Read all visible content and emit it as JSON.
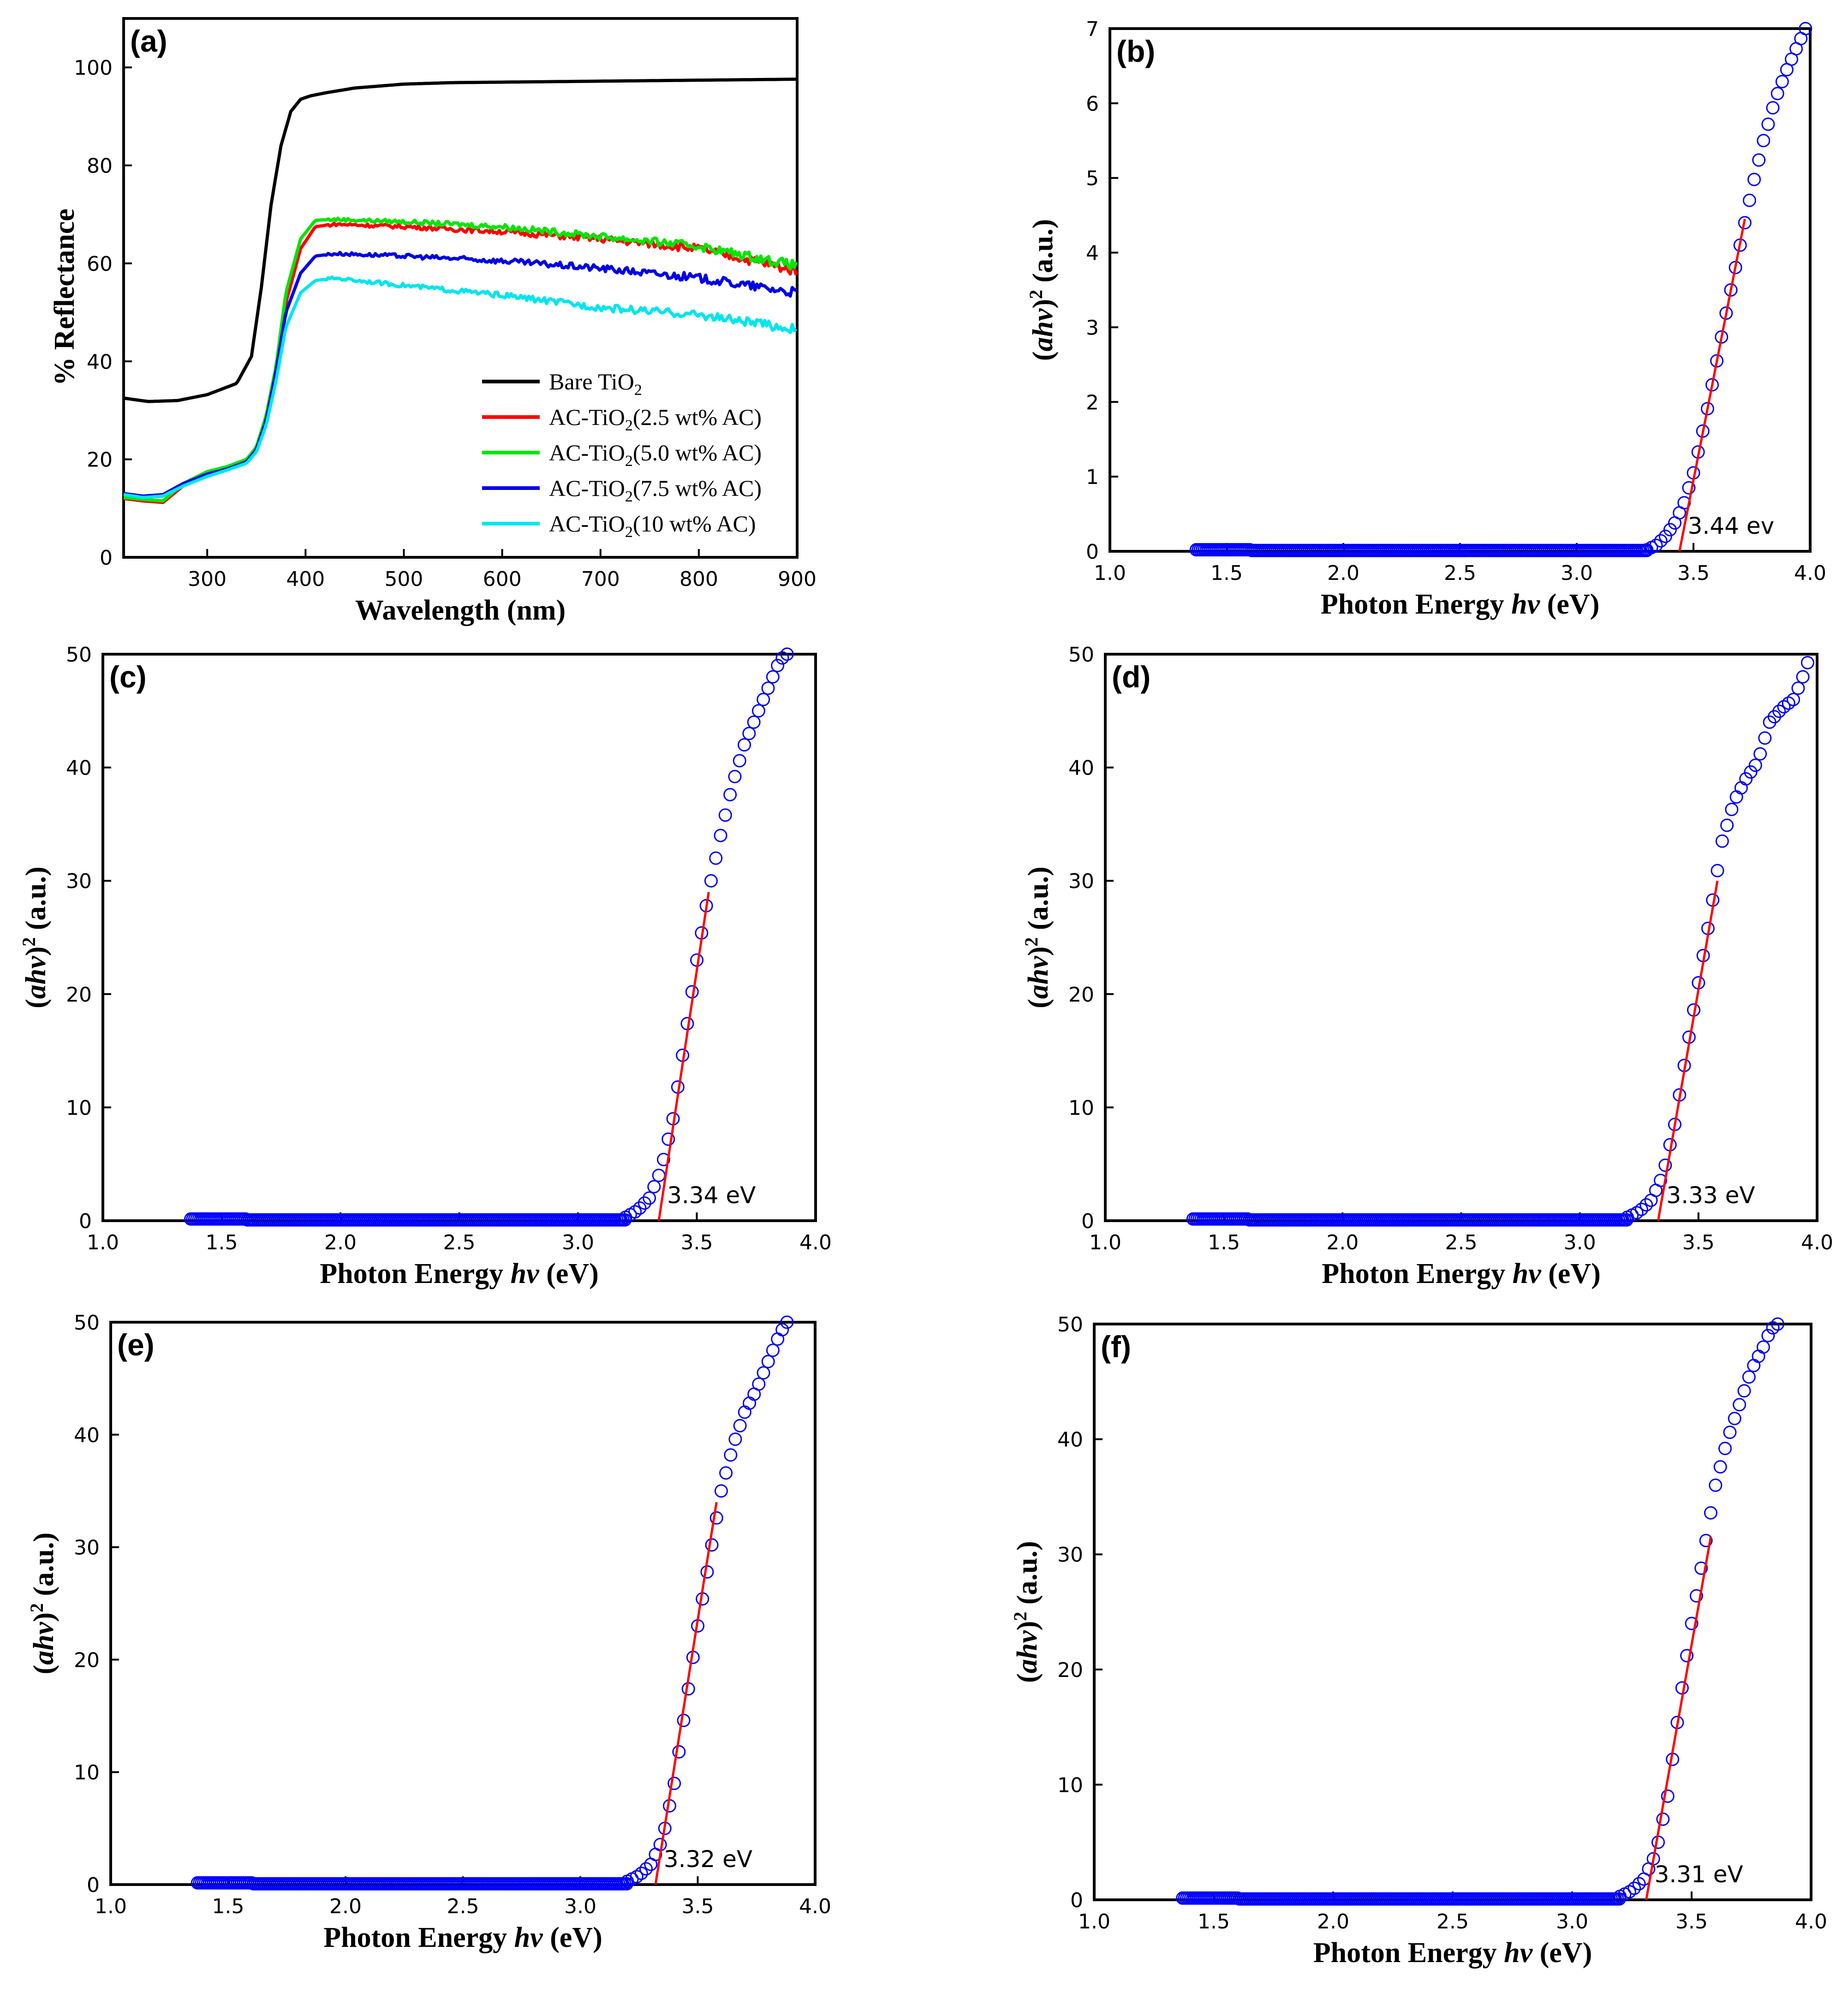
{
  "chart_data": [
    {
      "panel": "(a)",
      "type": "line",
      "xlabel": "Wavelength (nm)",
      "ylabel": "% Reflectance",
      "xlim": [
        215,
        900
      ],
      "ylim": [
        0,
        110
      ],
      "xticks": [
        300,
        400,
        500,
        600,
        700,
        800,
        900
      ],
      "yticks": [
        0,
        20,
        40,
        60,
        80,
        100
      ],
      "legend_position": "bottom-right",
      "series": [
        {
          "name": "Bare TiO2",
          "label_main": "Bare TiO",
          "label_sub": "2",
          "label_tail": "",
          "color": "#000000",
          "x": [
            215,
            240,
            270,
            300,
            330,
            345,
            355,
            365,
            375,
            385,
            395,
            405,
            420,
            450,
            500,
            550,
            600,
            700,
            800,
            900
          ],
          "y": [
            32.5,
            31.8,
            32.0,
            33.2,
            35.5,
            41,
            55,
            72,
            84,
            91,
            93.5,
            94.2,
            94.8,
            95.8,
            96.6,
            96.9,
            97.0,
            97.2,
            97.4,
            97.6
          ]
        },
        {
          "name": "AC-TiO2(2.5 wt% AC)",
          "label_main": "AC-TiO",
          "label_sub": "2",
          "label_tail": "(2.5 wt% AC)",
          "color": "#ff0000",
          "x": [
            215,
            235,
            255,
            275,
            300,
            320,
            340,
            350,
            360,
            370,
            380,
            395,
            410,
            430,
            500,
            600,
            700,
            800,
            900
          ],
          "y": [
            12,
            11.5,
            11.2,
            14.5,
            17,
            18.2,
            19.5,
            22,
            28,
            38,
            52,
            63,
            67.5,
            68,
            67.5,
            66.5,
            65,
            63,
            58.5
          ]
        },
        {
          "name": "AC-TiO2(5.0 wt% AC)",
          "label_main": "AC-TiO",
          "label_sub": "2",
          "label_tail": "(5.0 wt% AC)",
          "color": "#00e600",
          "x": [
            215,
            235,
            255,
            275,
            300,
            320,
            340,
            350,
            360,
            370,
            380,
            395,
            410,
            430,
            500,
            600,
            700,
            800,
            900
          ],
          "y": [
            12.2,
            11.8,
            11.5,
            15,
            17.5,
            18.5,
            20,
            22.5,
            29,
            39,
            54,
            65,
            68.8,
            69,
            68.5,
            67.5,
            65.5,
            63.5,
            59.5
          ]
        },
        {
          "name": "AC-TiO2(7.5 wt% AC)",
          "label_main": "AC-TiO",
          "label_sub": "2",
          "label_tail": "(7.5 wt% AC)",
          "color": "#0000e6",
          "x": [
            215,
            235,
            255,
            275,
            300,
            320,
            340,
            350,
            360,
            370,
            380,
            395,
            410,
            430,
            500,
            600,
            700,
            800,
            900
          ],
          "y": [
            13,
            12.5,
            12.8,
            15,
            17,
            18,
            19.5,
            22,
            28,
            38,
            50,
            58,
            61.5,
            62,
            61.5,
            60.5,
            59,
            57,
            54
          ]
        },
        {
          "name": "AC-TiO2(10 wt% AC)",
          "label_main": "AC-TiO",
          "label_sub": "2",
          "label_tail": "(10 wt% AC)",
          "color": "#00e5ee",
          "x": [
            215,
            235,
            255,
            275,
            300,
            320,
            340,
            350,
            360,
            370,
            380,
            395,
            410,
            430,
            500,
            600,
            700,
            800,
            900
          ],
          "y": [
            12.8,
            12.2,
            12.5,
            14.5,
            16.5,
            17.8,
            19.2,
            21.5,
            27,
            36,
            47,
            54,
            56.5,
            57,
            55.5,
            53.5,
            51,
            49.5,
            46.5
          ]
        }
      ]
    },
    {
      "panel": "(b)",
      "type": "scatter",
      "xlabel": "Photon Energy hv (eV)",
      "xlabel_main": "Photon Energy ",
      "xlabel_italic": "hv",
      "xlabel_tail": " (eV)",
      "ylabel": "(ahv)2 (a.u.)",
      "xlim": [
        1.0,
        4.0
      ],
      "ylim": [
        0,
        7
      ],
      "xticks": [
        1.0,
        1.5,
        2.0,
        2.5,
        3.0,
        3.5,
        4.0
      ],
      "yticks": [
        0,
        1,
        2,
        3,
        4,
        5,
        6,
        7
      ],
      "band_gap_label": "3.44 ev",
      "band_gap": 3.44,
      "fit_line": {
        "x": [
          3.44,
          3.72
        ],
        "y": [
          0,
          4.45
        ]
      },
      "curve": {
        "x": [
          3.3,
          3.34,
          3.38,
          3.42,
          3.46,
          3.5,
          3.55,
          3.6,
          3.65,
          3.7,
          3.75,
          3.8,
          3.85,
          3.9,
          3.95,
          3.98
        ],
        "y": [
          0.02,
          0.08,
          0.2,
          0.38,
          0.65,
          1.05,
          1.75,
          2.55,
          3.35,
          4.1,
          4.85,
          5.5,
          6.05,
          6.45,
          6.8,
          7.0
        ]
      }
    },
    {
      "panel": "(c)",
      "type": "scatter",
      "xlabel": "Photon Energy hv (eV)",
      "xlabel_main": "Photon Energy ",
      "xlabel_italic": "hv",
      "xlabel_tail": " (eV)",
      "ylabel": "(ahv)2 (a.u.)",
      "xlim": [
        1.0,
        4.0
      ],
      "ylim": [
        0,
        50
      ],
      "xticks": [
        1.0,
        1.5,
        2.0,
        2.5,
        3.0,
        3.5,
        4.0
      ],
      "yticks": [
        0,
        10,
        20,
        30,
        40,
        50
      ],
      "band_gap_label": "3.34 eV",
      "band_gap": 3.34,
      "fit_line": {
        "x": [
          3.34,
          3.55
        ],
        "y": [
          0,
          29
        ]
      },
      "curve": {
        "x": [
          3.2,
          3.25,
          3.3,
          3.35,
          3.4,
          3.45,
          3.5,
          3.55,
          3.6,
          3.65,
          3.7,
          3.75,
          3.8,
          3.85,
          3.88
        ],
        "y": [
          0.3,
          0.9,
          2.0,
          4.5,
          9,
          16,
          23,
          29,
          34,
          38.5,
          42,
          44.5,
          47,
          49.5,
          50
        ]
      }
    },
    {
      "panel": "(d)",
      "type": "scatter",
      "xlabel": "Photon Energy hv (eV)",
      "xlabel_main": "Photon Energy ",
      "xlabel_italic": "hv",
      "xlabel_tail": " (eV)",
      "ylabel": "(ahv)2 (a.u.)",
      "xlim": [
        1.0,
        4.0
      ],
      "ylim": [
        0,
        50
      ],
      "xticks": [
        1.0,
        1.5,
        2.0,
        2.5,
        3.0,
        3.5,
        4.0
      ],
      "yticks": [
        0,
        10,
        20,
        30,
        40,
        50
      ],
      "band_gap_label": "3.33 eV",
      "band_gap": 3.33,
      "fit_line": {
        "x": [
          3.33,
          3.58
        ],
        "y": [
          0,
          30
        ]
      },
      "curve": {
        "x": [
          3.2,
          3.25,
          3.3,
          3.35,
          3.4,
          3.45,
          3.5,
          3.55,
          3.6,
          3.65,
          3.7,
          3.75,
          3.8,
          3.85,
          3.9,
          3.95,
          3.97
        ],
        "y": [
          0.3,
          0.8,
          1.8,
          4,
          8.5,
          15,
          21,
          27,
          33.5,
          37,
          39,
          40.5,
          44,
          45.2,
          46,
          48.5,
          50
        ]
      }
    },
    {
      "panel": "(e)",
      "type": "scatter",
      "xlabel": "Photon Energy hv (eV)",
      "xlabel_main": "Photon Energy ",
      "xlabel_italic": "hv",
      "xlabel_tail": " (eV)",
      "ylabel": "(ahv)2 (a.u.)",
      "xlim": [
        1.0,
        4.0
      ],
      "ylim": [
        0,
        50
      ],
      "xticks": [
        1.0,
        1.5,
        2.0,
        2.5,
        3.0,
        3.5,
        4.0
      ],
      "yticks": [
        0,
        10,
        20,
        30,
        40,
        50
      ],
      "band_gap_label": "3.32 eV",
      "band_gap": 3.32,
      "fit_line": {
        "x": [
          3.32,
          3.58
        ],
        "y": [
          0,
          34
        ]
      },
      "curve": {
        "x": [
          3.2,
          3.25,
          3.3,
          3.35,
          3.4,
          3.45,
          3.5,
          3.55,
          3.6,
          3.65,
          3.7,
          3.75,
          3.8,
          3.85,
          3.88
        ],
        "y": [
          0.3,
          0.8,
          1.8,
          4,
          9,
          16,
          23,
          29,
          35,
          39,
          42,
          44,
          46.5,
          49,
          50
        ]
      }
    },
    {
      "panel": "(f)",
      "type": "scatter",
      "xlabel": "Photon Energy hv (eV)",
      "xlabel_main": "Photon Energy ",
      "xlabel_italic": "hv",
      "xlabel_tail": " (eV)",
      "ylabel": "(ahv)2 (a.u.)",
      "xlim": [
        1.0,
        4.0
      ],
      "ylim": [
        0,
        50
      ],
      "xticks": [
        1.0,
        1.5,
        2.0,
        2.5,
        3.0,
        3.5,
        4.0
      ],
      "yticks": [
        0,
        10,
        20,
        30,
        40,
        50
      ],
      "band_gap_label": "3.31 eV",
      "band_gap": 3.31,
      "fit_line": {
        "x": [
          3.31,
          3.58
        ],
        "y": [
          0,
          31.5
        ]
      },
      "curve": {
        "x": [
          3.2,
          3.25,
          3.3,
          3.35,
          3.4,
          3.45,
          3.5,
          3.55,
          3.6,
          3.65,
          3.7,
          3.75,
          3.8,
          3.83,
          3.86
        ],
        "y": [
          0.3,
          0.8,
          1.8,
          4,
          9,
          17,
          24,
          30,
          36,
          40,
          43,
          46,
          48,
          49.5,
          50
        ]
      }
    }
  ],
  "ylabel_parts": {
    "open": "(",
    "italic": "ahv",
    "close": ")",
    "sup": "2",
    "tail": " (a.u.)"
  }
}
